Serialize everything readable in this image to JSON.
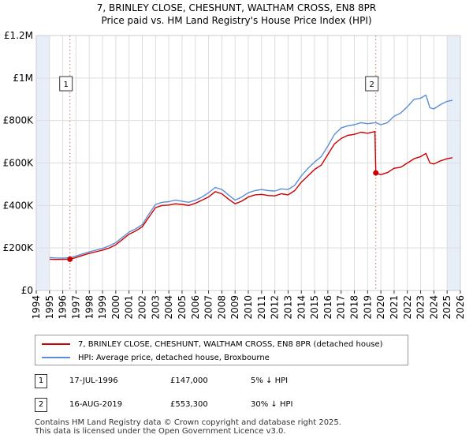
{
  "title": {
    "line1": "7, BRINLEY CLOSE, CHESHUNT, WALTHAM CROSS, EN8 8PR",
    "line2": "Price paid vs. HM Land Registry's House Price Index (HPI)"
  },
  "colors": {
    "property": "#cc0000",
    "hpi": "#5b8ed6",
    "marker_line": "#e06666",
    "grid": "#dddddd",
    "shade": "#e8eef8"
  },
  "chart_data": {
    "type": "line",
    "xlim": [
      1994,
      2026
    ],
    "ylim": [
      0,
      1200000
    ],
    "x_ticks": [
      1994,
      1995,
      1996,
      1997,
      1998,
      1999,
      2000,
      2001,
      2002,
      2003,
      2004,
      2005,
      2006,
      2007,
      2008,
      2009,
      2010,
      2011,
      2012,
      2013,
      2014,
      2015,
      2016,
      2017,
      2018,
      2019,
      2020,
      2021,
      2022,
      2023,
      2024,
      2025,
      2026
    ],
    "y_ticks": [
      {
        "value": 0,
        "label": "£0"
      },
      {
        "value": 200000,
        "label": "£200K"
      },
      {
        "value": 400000,
        "label": "£400K"
      },
      {
        "value": 600000,
        "label": "£600K"
      },
      {
        "value": 800000,
        "label": "£800K"
      },
      {
        "value": 1000000,
        "label": "£1M"
      },
      {
        "value": 1200000,
        "label": "£1.2M"
      }
    ],
    "grid": true,
    "shaded_ranges": [
      [
        1994,
        1995
      ],
      [
        2025,
        2026
      ]
    ],
    "series": [
      {
        "name": "7, BRINLEY CLOSE, CHESHUNT, WALTHAM CROSS, EN8 8PR (detached house)",
        "color": "#cc0000",
        "points": [
          [
            1995,
            147000
          ],
          [
            1995.5,
            146000
          ],
          [
            1996,
            146500
          ],
          [
            1996.54,
            147000
          ],
          [
            1997,
            155000
          ],
          [
            1997.5,
            165000
          ],
          [
            1998,
            175000
          ],
          [
            1998.5,
            182000
          ],
          [
            1999,
            190000
          ],
          [
            1999.5,
            200000
          ],
          [
            2000,
            215000
          ],
          [
            2000.5,
            240000
          ],
          [
            2001,
            265000
          ],
          [
            2001.5,
            280000
          ],
          [
            2002,
            300000
          ],
          [
            2002.5,
            345000
          ],
          [
            2003,
            390000
          ],
          [
            2003.5,
            400000
          ],
          [
            2004,
            402000
          ],
          [
            2004.5,
            408000
          ],
          [
            2005,
            405000
          ],
          [
            2005.5,
            400000
          ],
          [
            2006,
            410000
          ],
          [
            2006.5,
            425000
          ],
          [
            2007,
            440000
          ],
          [
            2007.5,
            465000
          ],
          [
            2008,
            455000
          ],
          [
            2008.5,
            430000
          ],
          [
            2009,
            408000
          ],
          [
            2009.5,
            420000
          ],
          [
            2010,
            440000
          ],
          [
            2010.5,
            450000
          ],
          [
            2011,
            452000
          ],
          [
            2011.5,
            447000
          ],
          [
            2012,
            445000
          ],
          [
            2012.5,
            455000
          ],
          [
            2013,
            450000
          ],
          [
            2013.5,
            470000
          ],
          [
            2014,
            510000
          ],
          [
            2014.5,
            540000
          ],
          [
            2015,
            570000
          ],
          [
            2015.5,
            590000
          ],
          [
            2016,
            640000
          ],
          [
            2016.5,
            690000
          ],
          [
            2017,
            715000
          ],
          [
            2017.5,
            730000
          ],
          [
            2018,
            735000
          ],
          [
            2018.5,
            745000
          ],
          [
            2019,
            740000
          ],
          [
            2019.55,
            748000
          ],
          [
            2019.62,
            553300
          ],
          [
            2020,
            545000
          ],
          [
            2020.5,
            555000
          ],
          [
            2021,
            575000
          ],
          [
            2021.5,
            580000
          ],
          [
            2022,
            600000
          ],
          [
            2022.5,
            620000
          ],
          [
            2023,
            630000
          ],
          [
            2023.4,
            645000
          ],
          [
            2023.7,
            600000
          ],
          [
            2024,
            595000
          ],
          [
            2024.5,
            610000
          ],
          [
            2025,
            620000
          ],
          [
            2025.4,
            625000
          ]
        ]
      },
      {
        "name": "HPI: Average price, detached house, Broxbourne",
        "color": "#5b8ed6",
        "points": [
          [
            1995,
            155000
          ],
          [
            1995.5,
            153000
          ],
          [
            1996,
            152000
          ],
          [
            1996.54,
            154000
          ],
          [
            1997,
            162000
          ],
          [
            1997.5,
            172000
          ],
          [
            1998,
            182000
          ],
          [
            1998.5,
            190000
          ],
          [
            1999,
            198000
          ],
          [
            1999.5,
            210000
          ],
          [
            2000,
            225000
          ],
          [
            2000.5,
            250000
          ],
          [
            2001,
            275000
          ],
          [
            2001.5,
            290000
          ],
          [
            2002,
            310000
          ],
          [
            2002.5,
            360000
          ],
          [
            2003,
            405000
          ],
          [
            2003.5,
            415000
          ],
          [
            2004,
            418000
          ],
          [
            2004.5,
            425000
          ],
          [
            2005,
            420000
          ],
          [
            2005.5,
            415000
          ],
          [
            2006,
            425000
          ],
          [
            2006.5,
            440000
          ],
          [
            2007,
            460000
          ],
          [
            2007.5,
            485000
          ],
          [
            2008,
            475000
          ],
          [
            2008.5,
            450000
          ],
          [
            2009,
            425000
          ],
          [
            2009.5,
            440000
          ],
          [
            2010,
            460000
          ],
          [
            2010.5,
            470000
          ],
          [
            2011,
            475000
          ],
          [
            2011.5,
            470000
          ],
          [
            2012,
            468000
          ],
          [
            2012.5,
            478000
          ],
          [
            2013,
            475000
          ],
          [
            2013.5,
            495000
          ],
          [
            2014,
            540000
          ],
          [
            2014.5,
            575000
          ],
          [
            2015,
            605000
          ],
          [
            2015.5,
            630000
          ],
          [
            2016,
            680000
          ],
          [
            2016.5,
            735000
          ],
          [
            2017,
            765000
          ],
          [
            2017.5,
            775000
          ],
          [
            2018,
            780000
          ],
          [
            2018.5,
            790000
          ],
          [
            2019,
            785000
          ],
          [
            2019.62,
            790000
          ],
          [
            2020,
            780000
          ],
          [
            2020.5,
            790000
          ],
          [
            2021,
            820000
          ],
          [
            2021.5,
            835000
          ],
          [
            2022,
            865000
          ],
          [
            2022.5,
            900000
          ],
          [
            2023,
            905000
          ],
          [
            2023.4,
            920000
          ],
          [
            2023.7,
            860000
          ],
          [
            2024,
            855000
          ],
          [
            2024.5,
            875000
          ],
          [
            2025,
            890000
          ],
          [
            2025.4,
            895000
          ]
        ]
      }
    ],
    "sales": [
      {
        "label": "1",
        "x": 1996.54,
        "y": 147000,
        "date": "17-JUL-1996",
        "price": "£147,000",
        "hpi_note": "5% ↓ HPI"
      },
      {
        "label": "2",
        "x": 2019.62,
        "y": 553300,
        "date": "16-AUG-2019",
        "price": "£553,300",
        "hpi_note": "30% ↓ HPI"
      }
    ]
  },
  "legend": {
    "property_label": "7, BRINLEY CLOSE, CHESHUNT, WALTHAM CROSS, EN8 8PR (detached house)",
    "hpi_label": "HPI: Average price, detached house, Broxbourne"
  },
  "footer": {
    "line1": "Contains HM Land Registry data © Crown copyright and database right 2025.",
    "line2": "This data is licensed under the Open Government Licence v3.0."
  }
}
